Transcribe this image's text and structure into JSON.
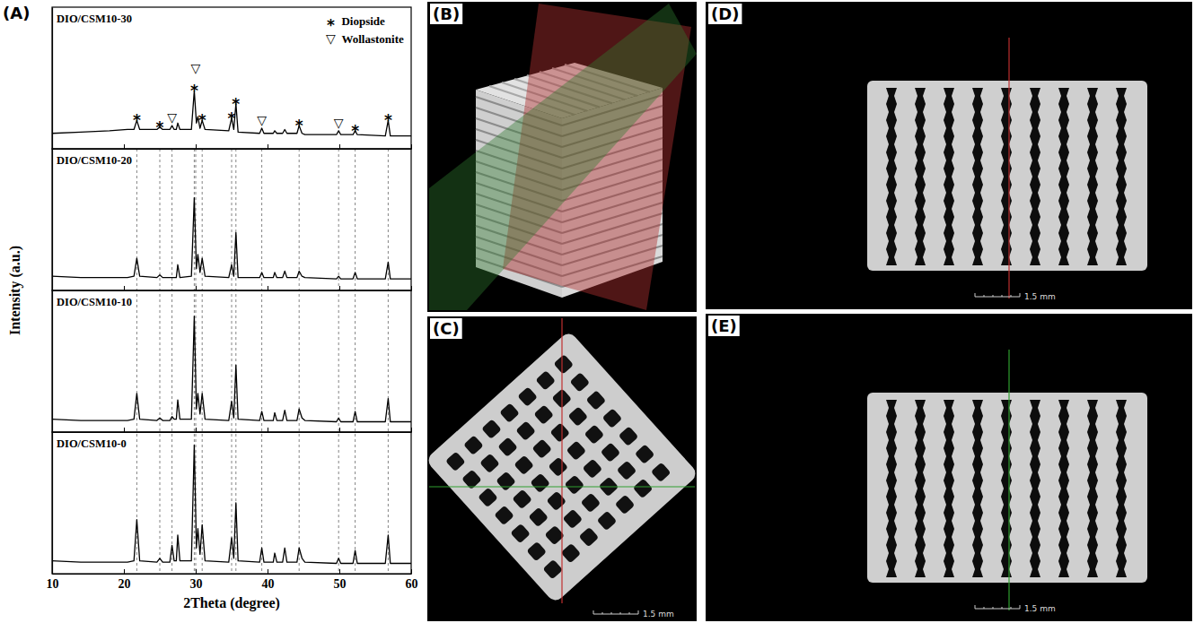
{
  "chart_data": [
    {
      "type": "line",
      "title": "DIO/CSM10-30",
      "panel_label": "(A)",
      "y_label": "Intensity (a.u.)",
      "color": "#000000",
      "legend": "top-right",
      "tick_labels": false,
      "xlim": [
        10,
        60
      ],
      "ylim": [
        0,
        110
      ],
      "xticks": [
        10,
        20,
        30,
        40,
        50,
        60
      ],
      "x": [
        10,
        14,
        18,
        20.5,
        21.4,
        21.8,
        22.2,
        24.6,
        25.0,
        25.4,
        26.4,
        26.7,
        27.0,
        27.3,
        27.5,
        27.8,
        29.4,
        29.8,
        30.1,
        30.3,
        30.6,
        30.9,
        31.3,
        34.6,
        35.0,
        35.3,
        35.6,
        35.9,
        38.9,
        39.2,
        39.5,
        40.8,
        41.0,
        41.3,
        42.1,
        42.4,
        42.7,
        44.1,
        44.4,
        44.8,
        45.2,
        49.6,
        49.9,
        50.2,
        51.9,
        52.2,
        52.5,
        56.4,
        56.8,
        57.1,
        60
      ],
      "values": [
        12,
        13,
        14,
        15,
        15,
        22,
        15,
        15,
        17,
        15,
        15,
        18,
        15,
        15,
        20,
        15,
        15,
        45,
        20,
        25,
        16,
        22,
        15,
        14,
        24,
        15,
        35,
        13,
        12,
        16,
        12,
        12,
        14,
        12,
        12,
        15,
        12,
        12,
        18,
        12,
        11,
        11,
        14,
        11,
        11,
        14,
        11,
        10,
        22,
        10,
        10
      ],
      "markers": [
        {
          "name": "Diopside",
          "symbol": "*",
          "x": [
            21.8,
            25.0,
            29.8,
            30.9,
            35.0,
            35.6,
            44.4,
            52.2,
            56.8
          ]
        },
        {
          "name": "Wollastonite",
          "symbol": "▽",
          "x": [
            26.7,
            30.0,
            39.2,
            49.9
          ]
        }
      ]
    },
    {
      "type": "line",
      "title": "DIO/CSM10-20",
      "color": "#000000",
      "tick_labels": false,
      "xlim": [
        10,
        60
      ],
      "ylim": [
        0,
        110
      ],
      "xticks": [
        10,
        20,
        30,
        40,
        50,
        60
      ],
      "x": [
        10,
        14,
        18,
        20.5,
        21.4,
        21.8,
        22.2,
        24.6,
        25.0,
        25.4,
        26.4,
        26.7,
        27.0,
        27.3,
        27.5,
        27.8,
        29.4,
        29.8,
        30.1,
        30.3,
        30.6,
        30.9,
        31.3,
        34.6,
        35.0,
        35.3,
        35.6,
        35.9,
        38.9,
        39.2,
        39.5,
        40.8,
        41.0,
        41.3,
        42.1,
        42.4,
        42.7,
        44.1,
        44.4,
        44.8,
        45.2,
        49.6,
        49.9,
        50.2,
        51.9,
        52.2,
        52.5,
        56.4,
        56.8,
        57.1,
        60
      ],
      "values": [
        11,
        10,
        10,
        10,
        11,
        25,
        11,
        10,
        12,
        10,
        10,
        10,
        10,
        10,
        20,
        10,
        11,
        72,
        17,
        28,
        14,
        25,
        11,
        10,
        20,
        11,
        45,
        10,
        10,
        14,
        10,
        10,
        14,
        10,
        10,
        15,
        10,
        10,
        15,
        11,
        10,
        9,
        11,
        9,
        9,
        14,
        9,
        9,
        22,
        9,
        9
      ]
    },
    {
      "type": "line",
      "title": "DIO/CSM10-10",
      "color": "#000000",
      "tick_labels": false,
      "xlim": [
        10,
        60
      ],
      "ylim": [
        0,
        110
      ],
      "xticks": [
        10,
        20,
        30,
        40,
        50,
        60
      ],
      "x": [
        10,
        14,
        18,
        20.5,
        21.4,
        21.8,
        22.2,
        24.6,
        25.0,
        25.4,
        26.4,
        26.7,
        27.0,
        27.3,
        27.5,
        27.8,
        29.4,
        29.8,
        30.1,
        30.3,
        30.6,
        30.9,
        31.3,
        34.6,
        35.0,
        35.3,
        35.6,
        35.9,
        38.9,
        39.2,
        39.5,
        40.8,
        41.0,
        41.3,
        42.1,
        42.4,
        42.7,
        44.1,
        44.4,
        44.8,
        45.2,
        49.6,
        49.9,
        50.2,
        51.9,
        52.2,
        52.5,
        56.4,
        56.8,
        57.1,
        60
      ],
      "values": [
        10,
        9,
        9,
        9,
        10,
        30,
        10,
        9,
        11,
        9,
        9,
        12,
        10,
        10,
        25,
        10,
        10,
        90,
        18,
        30,
        14,
        30,
        10,
        9,
        24,
        11,
        52,
        10,
        9,
        16,
        9,
        9,
        15,
        9,
        9,
        17,
        9,
        9,
        18,
        11,
        9,
        8,
        11,
        8,
        8,
        16,
        8,
        8,
        26,
        8,
        8
      ]
    },
    {
      "type": "line",
      "title": "DIO/CSM10-0",
      "x_label": "2Theta (degree)",
      "color": "#000000",
      "tick_labels": "x",
      "xlim": [
        10,
        60
      ],
      "ylim": [
        0,
        110
      ],
      "xticks": [
        10,
        20,
        30,
        40,
        50,
        60
      ],
      "x": [
        10,
        14,
        18,
        20.5,
        21.4,
        21.8,
        22.2,
        24.6,
        25.0,
        25.4,
        26.4,
        26.7,
        27.0,
        27.3,
        27.5,
        27.8,
        29.4,
        29.8,
        30.1,
        30.3,
        30.6,
        30.9,
        31.3,
        34.6,
        35.0,
        35.3,
        35.6,
        35.9,
        38.9,
        39.2,
        39.5,
        40.8,
        41.0,
        41.3,
        42.1,
        42.4,
        42.7,
        44.1,
        44.4,
        44.8,
        45.2,
        49.6,
        49.9,
        50.2,
        51.9,
        52.2,
        52.5,
        56.4,
        56.8,
        57.1,
        60
      ],
      "values": [
        10,
        9,
        9,
        9,
        10,
        42,
        10,
        9,
        12,
        9,
        9,
        22,
        10,
        10,
        30,
        10,
        10,
        100,
        20,
        35,
        15,
        38,
        10,
        9,
        28,
        12,
        55,
        10,
        9,
        20,
        9,
        9,
        16,
        9,
        9,
        20,
        9,
        9,
        20,
        12,
        9,
        8,
        12,
        8,
        8,
        18,
        8,
        8,
        30,
        8,
        8
      ]
    }
  ],
  "images": [
    {
      "letter": "(B)"
    },
    {
      "letter": "(C)",
      "scale_label": "1.5 mm"
    },
    {
      "letter": "(D)",
      "scale_label": "1.5 mm"
    },
    {
      "letter": "(E)",
      "scale_label": "1.5 mm"
    }
  ]
}
